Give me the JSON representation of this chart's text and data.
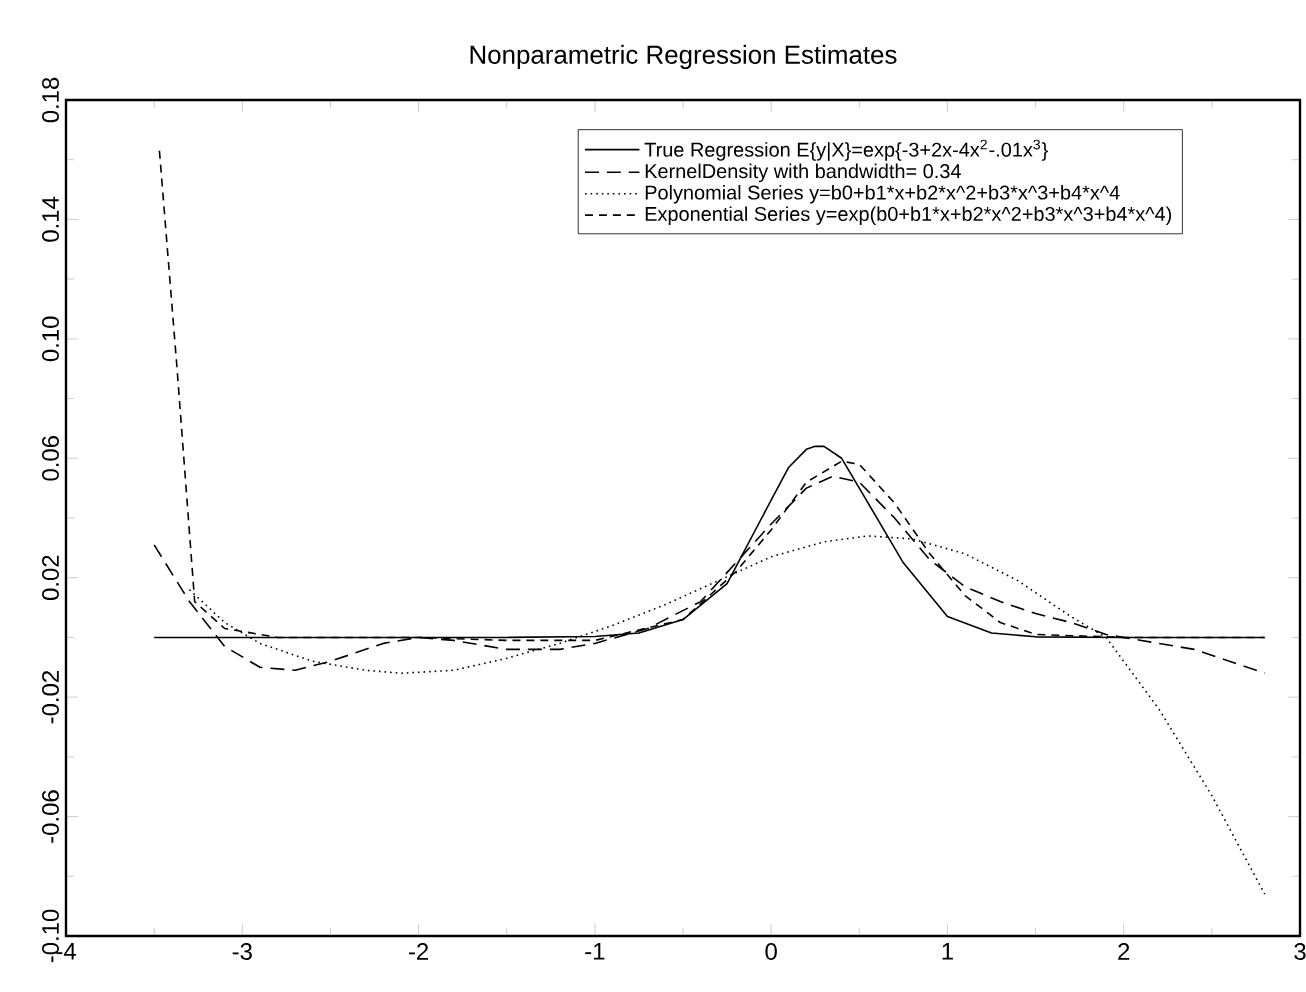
{
  "chart_data": {
    "type": "line",
    "title": "Nonparametric Regression Estimates",
    "xlim": [
      -4,
      3
    ],
    "xticks": [
      -4,
      -3,
      -2,
      -1,
      0,
      1,
      2,
      3
    ],
    "ylim": [
      -0.1,
      0.18
    ],
    "yticks": [
      {
        "value": -0.1,
        "label": "-0.10"
      },
      -0.06,
      -0.02,
      0.02,
      0.06,
      {
        "value": 0.1,
        "label": "0.10"
      },
      0.14,
      0.18
    ],
    "legend": "top right",
    "grid": false,
    "marker": "none",
    "series": [
      {
        "name": "True Regression E{y|X}=exp{-3+2x-4x$^{2}$-.01x$^{3}$}",
        "color": "#000000",
        "line_style": "solid",
        "x": [
          -3.5,
          -1.5,
          -1,
          -0.75,
          -0.5,
          -0.25,
          0,
          0.1,
          0.2,
          0.25,
          0.3,
          0.4,
          0.5,
          0.75,
          1,
          1.25,
          1.5,
          2,
          2.8
        ],
        "values": [
          0,
          0,
          0.0003,
          0.0015,
          0.006,
          0.018,
          0.046,
          0.057,
          0.063,
          0.064,
          0.064,
          0.06,
          0.05,
          0.025,
          0.007,
          0.0015,
          0.0002,
          0,
          0
        ]
      },
      {
        "name": "KernelDensity with bandwidth= 0.34",
        "color": "#000000",
        "line_style": "dashed",
        "x": [
          -3.5,
          -3.3,
          -3.1,
          -2.9,
          -2.7,
          -2.5,
          -2.2,
          -2,
          -1.8,
          -1.5,
          -1.2,
          -1,
          -0.7,
          -0.4,
          -0.2,
          0,
          0.2,
          0.35,
          0.5,
          0.7,
          0.9,
          1.1,
          1.3,
          1.5,
          1.7,
          1.9,
          2.1,
          2.4,
          2.6,
          2.8
        ],
        "values": [
          0.031,
          0.012,
          -0.003,
          -0.01,
          -0.011,
          -0.008,
          -0.002,
          0,
          -0.001,
          -0.004,
          -0.004,
          -0.002,
          0.003,
          0.012,
          0.025,
          0.038,
          0.05,
          0.054,
          0.052,
          0.04,
          0.026,
          0.017,
          0.012,
          0.008,
          0.005,
          0.001,
          -0.001,
          -0.004,
          -0.008,
          -0.012
        ]
      },
      {
        "name": "Polynomial Series y=b0+b1*x+b2*x^2+b3*x^3+b4*x^4",
        "color": "#000000",
        "line_style": "dotted",
        "x": [
          -3.3,
          -3.1,
          -2.9,
          -2.6,
          -2.3,
          -2.1,
          -1.8,
          -1.5,
          -1.2,
          -0.9,
          -0.6,
          -0.3,
          0,
          0.3,
          0.55,
          0.8,
          1.1,
          1.4,
          1.7,
          1.9,
          2.2,
          2.5,
          2.8
        ],
        "values": [
          0.016,
          0.005,
          -0.002,
          -0.008,
          -0.011,
          -0.012,
          -0.011,
          -0.007,
          -0.002,
          0.004,
          0.011,
          0.019,
          0.027,
          0.032,
          0.034,
          0.033,
          0.028,
          0.019,
          0.007,
          0,
          -0.024,
          -0.053,
          -0.086
        ]
      },
      {
        "name": "Exponential Series y=exp(b0+b1*x+b2*x^2+b3*x^3+b4*x^4)",
        "color": "#000000",
        "line_style": "dashed",
        "x": [
          -3.47,
          -3.37,
          -3.27,
          -3.1,
          -2.8,
          -2,
          -1.5,
          -1,
          -0.5,
          -0.2,
          0,
          0.2,
          0.4,
          0.5,
          0.7,
          0.9,
          1.1,
          1.3,
          1.5,
          2,
          2.8
        ],
        "values": [
          0.163,
          0.09,
          0.012,
          0.003,
          0,
          0,
          -0.001,
          -0.001,
          0.006,
          0.022,
          0.036,
          0.052,
          0.059,
          0.058,
          0.045,
          0.028,
          0.014,
          0.005,
          0.001,
          0,
          0
        ]
      }
    ]
  }
}
